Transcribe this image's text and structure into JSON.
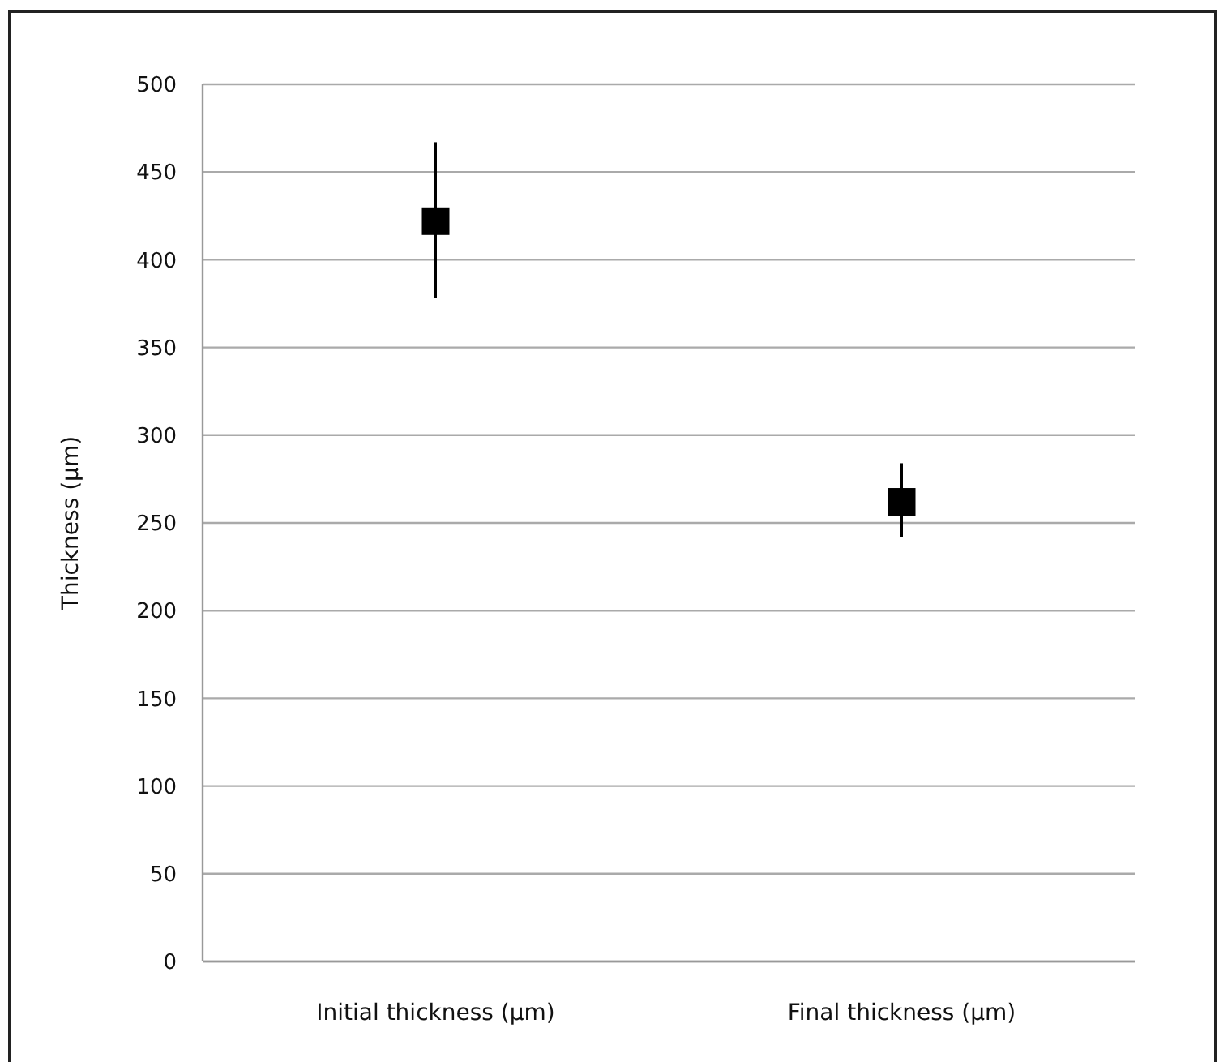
{
  "chart_data": {
    "type": "scatter",
    "ylabel": "Thickness (µm)",
    "categories": [
      "Initial thickness (µm)",
      "Final thickness (µm)"
    ],
    "series": [
      {
        "color": "#000000",
        "values": [
          422,
          262
        ],
        "errors": [
          [
            378,
            467
          ],
          [
            242,
            284
          ]
        ]
      }
    ],
    "ylim": [
      0,
      500
    ],
    "yticks": [
      0,
      50,
      100,
      150,
      200,
      250,
      300,
      350,
      400,
      450,
      500
    ],
    "grid": "y",
    "marker": "square"
  }
}
